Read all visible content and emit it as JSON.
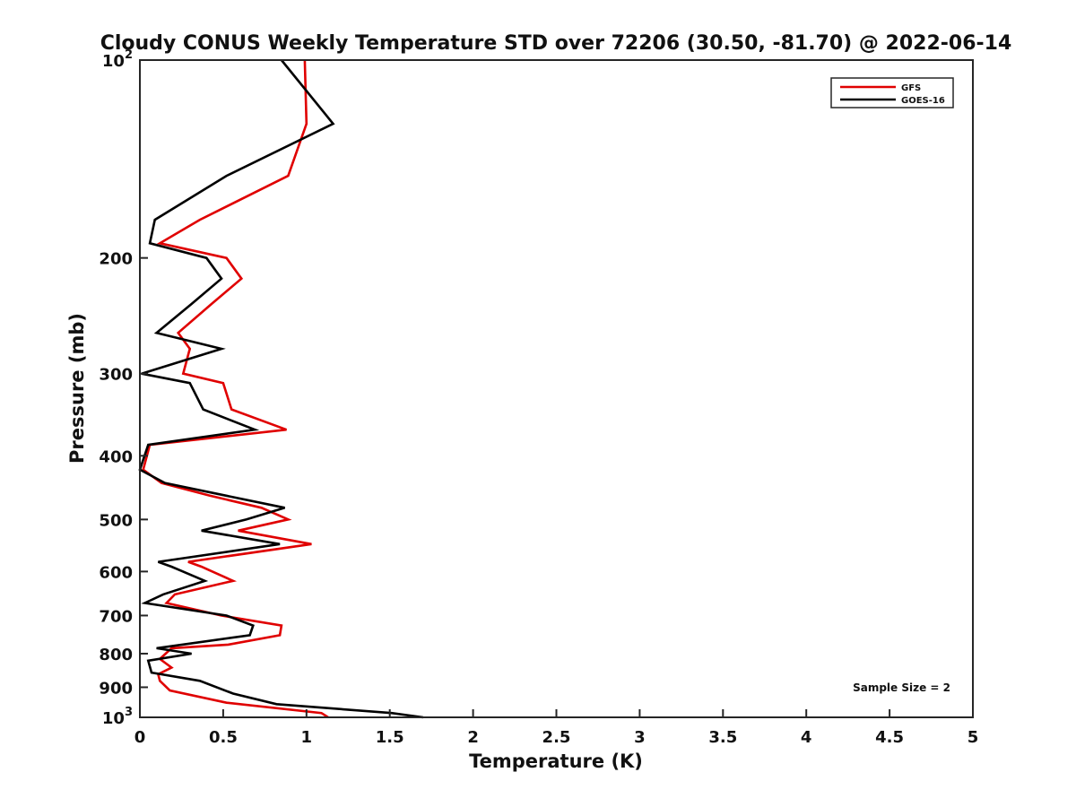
{
  "chart_data": {
    "type": "line",
    "title": "Cloudy CONUS Weekly Temperature STD over 72206 (30.50, -81.70) @ 2022-06-14",
    "xlabel": "Temperature (K)",
    "ylabel": "Pressure (mb)",
    "xlim": [
      0,
      5
    ],
    "ylim": [
      100,
      1000
    ],
    "y_scale": "log",
    "y_reversed": true,
    "grid": false,
    "legend_position": "top-right",
    "x_ticks": [
      {
        "value": 0,
        "label": "0"
      },
      {
        "value": 0.5,
        "label": "0.5"
      },
      {
        "value": 1,
        "label": "1"
      },
      {
        "value": 1.5,
        "label": "1.5"
      },
      {
        "value": 2,
        "label": "2"
      },
      {
        "value": 2.5,
        "label": "2.5"
      },
      {
        "value": 3,
        "label": "3"
      },
      {
        "value": 3.5,
        "label": "3.5"
      },
      {
        "value": 4,
        "label": "4"
      },
      {
        "value": 4.5,
        "label": "4.5"
      },
      {
        "value": 5,
        "label": "5"
      }
    ],
    "y_ticks": [
      {
        "value": 200,
        "label": "200"
      },
      {
        "value": 300,
        "label": "300"
      },
      {
        "value": 400,
        "label": "400"
      },
      {
        "value": 500,
        "label": "500"
      },
      {
        "value": 600,
        "label": "600"
      },
      {
        "value": 700,
        "label": "700"
      },
      {
        "value": 800,
        "label": "800"
      },
      {
        "value": 900,
        "label": "900"
      }
    ],
    "y_pow_ticks": [
      {
        "value": 100,
        "base": "10",
        "exp": "2"
      },
      {
        "value": 1000,
        "base": "10",
        "exp": "3"
      }
    ],
    "series": [
      {
        "name": "GFS",
        "color": "#e00000",
        "points": [
          [
            0.99,
            100
          ],
          [
            1.0,
            125
          ],
          [
            0.89,
            150
          ],
          [
            0.36,
            175
          ],
          [
            0.12,
            190
          ],
          [
            0.52,
            200
          ],
          [
            0.61,
            215
          ],
          [
            0.43,
            235
          ],
          [
            0.23,
            260
          ],
          [
            0.3,
            275
          ],
          [
            0.26,
            300
          ],
          [
            0.5,
            310
          ],
          [
            0.55,
            340
          ],
          [
            0.88,
            365
          ],
          [
            0.06,
            385
          ],
          [
            0.02,
            420
          ],
          [
            0.13,
            440
          ],
          [
            0.42,
            460
          ],
          [
            0.73,
            480
          ],
          [
            0.89,
            500
          ],
          [
            0.59,
            520
          ],
          [
            1.03,
            545
          ],
          [
            0.29,
            580
          ],
          [
            0.37,
            590
          ],
          [
            0.56,
            620
          ],
          [
            0.21,
            650
          ],
          [
            0.16,
            670
          ],
          [
            0.49,
            700
          ],
          [
            0.85,
            725
          ],
          [
            0.84,
            750
          ],
          [
            0.53,
            775
          ],
          [
            0.19,
            785
          ],
          [
            0.12,
            815
          ],
          [
            0.19,
            840
          ],
          [
            0.11,
            860
          ],
          [
            0.12,
            880
          ],
          [
            0.18,
            910
          ],
          [
            0.52,
            950
          ],
          [
            1.09,
            985
          ],
          [
            1.13,
            1000
          ]
        ]
      },
      {
        "name": "GOES-16",
        "color": "#000000",
        "points": [
          [
            0.85,
            100
          ],
          [
            1.16,
            125
          ],
          [
            0.52,
            150
          ],
          [
            0.09,
            175
          ],
          [
            0.06,
            190
          ],
          [
            0.4,
            200
          ],
          [
            0.49,
            215
          ],
          [
            0.31,
            235
          ],
          [
            0.1,
            260
          ],
          [
            0.49,
            275
          ],
          [
            0.01,
            300
          ],
          [
            0.3,
            310
          ],
          [
            0.38,
            340
          ],
          [
            0.69,
            365
          ],
          [
            0.05,
            385
          ],
          [
            0.0,
            420
          ],
          [
            0.15,
            440
          ],
          [
            0.87,
            480
          ],
          [
            0.64,
            500
          ],
          [
            0.37,
            520
          ],
          [
            0.84,
            545
          ],
          [
            0.11,
            580
          ],
          [
            0.19,
            590
          ],
          [
            0.39,
            620
          ],
          [
            0.14,
            650
          ],
          [
            0.03,
            670
          ],
          [
            0.52,
            700
          ],
          [
            0.68,
            725
          ],
          [
            0.66,
            750
          ],
          [
            0.1,
            785
          ],
          [
            0.31,
            800
          ],
          [
            0.05,
            820
          ],
          [
            0.07,
            855
          ],
          [
            0.36,
            880
          ],
          [
            0.56,
            920
          ],
          [
            0.82,
            955
          ],
          [
            1.51,
            985
          ],
          [
            1.7,
            1000
          ]
        ]
      }
    ],
    "annotations": [
      {
        "text": "Sample Size = 2"
      }
    ]
  }
}
